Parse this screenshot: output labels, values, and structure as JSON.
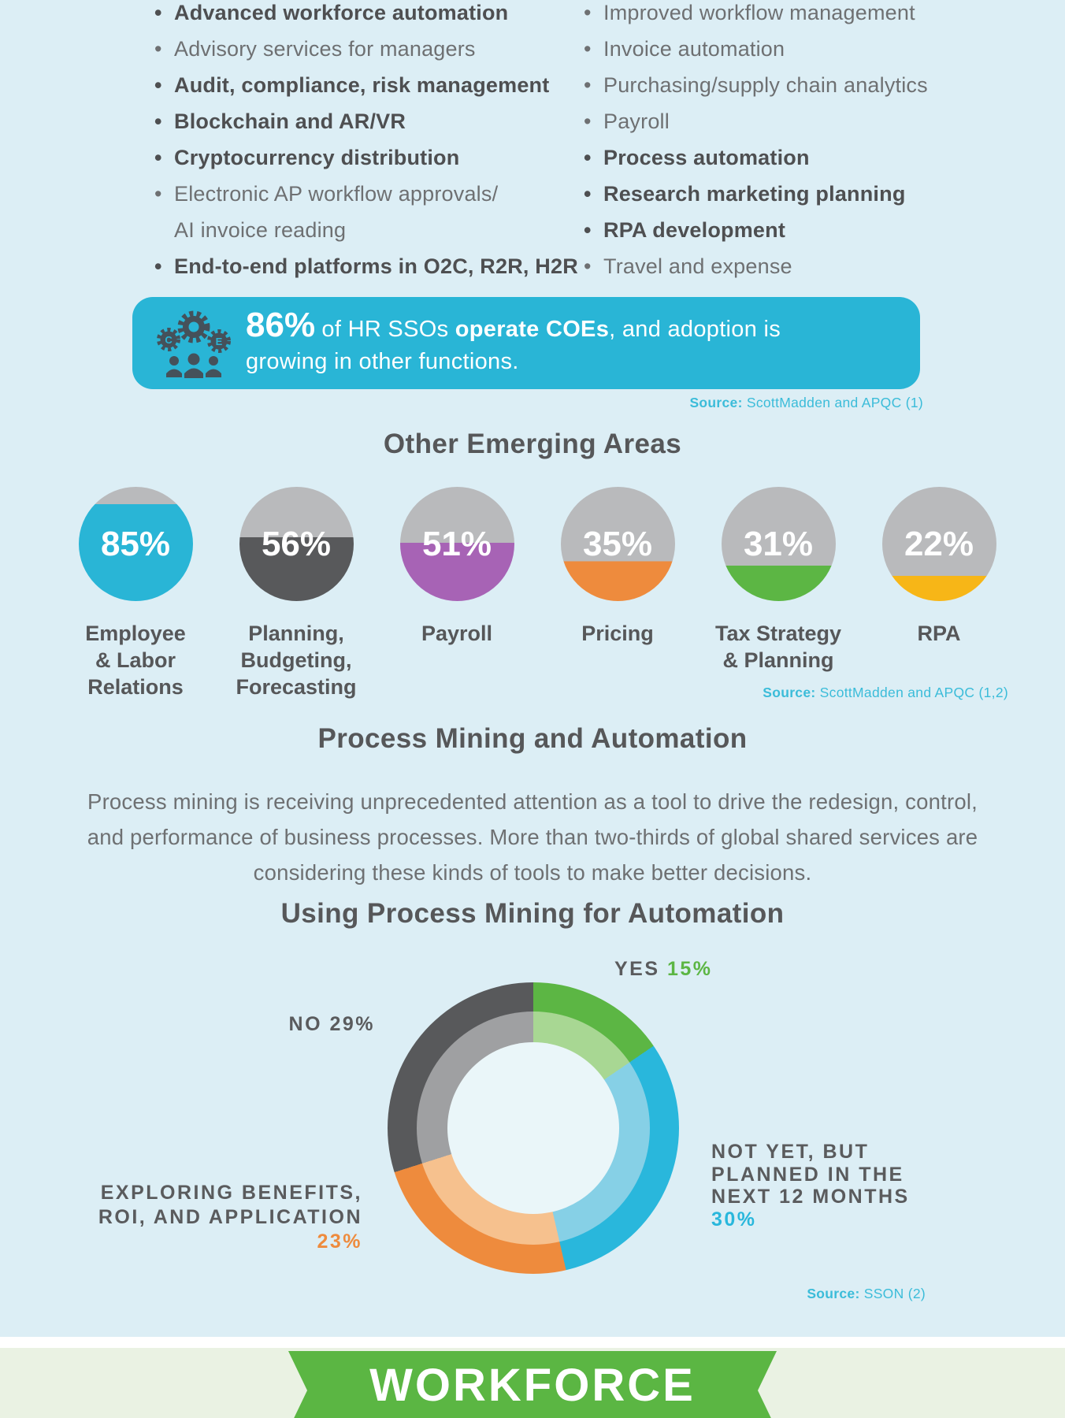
{
  "colors": {
    "page_bg": "#dceef5",
    "teal": "#29b5d6",
    "teal_bright": "#29b7dc",
    "source_teal": "#3bbcd9",
    "dark_gray": "#58595b",
    "text_gray": "#6e7072",
    "bold_text_gray": "#4e4f51",
    "purple": "#a763b5",
    "orange": "#ee8b3d",
    "green": "#5cb644",
    "yellow": "#f7b617",
    "circle_track_gray": "#b9babc",
    "banner_green": "#5bb643",
    "footer_bg": "#eaf2e3",
    "donut_hole": "#eaf6f9"
  },
  "bullets": {
    "left": [
      {
        "text": "Advanced workforce automation",
        "bold": true
      },
      {
        "text": "Advisory services for managers",
        "bold": false
      },
      {
        "text": "Audit, compliance, risk management",
        "bold": true
      },
      {
        "text": "Blockchain and AR/VR",
        "bold": true
      },
      {
        "text": "Cryptocurrency distribution",
        "bold": true
      },
      {
        "lines": [
          "Electronic AP workflow approvals/",
          "AI invoice reading"
        ],
        "bold": false
      },
      {
        "text": "End-to-end platforms in O2C, R2R, H2R",
        "bold": true
      }
    ],
    "right": [
      {
        "text": "Improved workflow management",
        "bold": false
      },
      {
        "text": "Invoice automation",
        "bold": false
      },
      {
        "text": "Purchasing/supply chain analytics",
        "bold": false
      },
      {
        "text": "Payroll",
        "bold": false
      },
      {
        "text": "Process automation",
        "bold": true
      },
      {
        "text": "Research marketing planning",
        "bold": true
      },
      {
        "text": "RPA development",
        "bold": true
      },
      {
        "text": "Travel and expense",
        "bold": false
      }
    ]
  },
  "callout": {
    "icon": "coe-gears-people-icon",
    "stat": "86%",
    "text_after_stat": " of HR SSOs ",
    "bold_phrase": "operate COEs",
    "text_rest": ", and adoption is growing in other functions."
  },
  "sources": {
    "label": "Source:",
    "s1": " ScottMadden and APQC (1)",
    "s2": " ScottMadden and APQC (1,2)",
    "s3": " SSON (2)"
  },
  "emerging": {
    "title": "Other Emerging Areas",
    "items": [
      {
        "pct_label": "85%",
        "value": 85,
        "color": "#29b5d6",
        "label_lines": [
          "Employee",
          "& Labor",
          "Relations"
        ]
      },
      {
        "pct_label": "56%",
        "value": 56,
        "color": "#58595b",
        "label_lines": [
          "Planning,",
          "Budgeting,",
          "Forecasting"
        ]
      },
      {
        "pct_label": "51%",
        "value": 51,
        "color": "#a763b5",
        "label_lines": [
          "Payroll"
        ]
      },
      {
        "pct_label": "35%",
        "value": 35,
        "color": "#ee8b3d",
        "label_lines": [
          "Pricing"
        ]
      },
      {
        "pct_label": "31%",
        "value": 31,
        "color": "#5cb644",
        "label_lines": [
          "Tax Strategy",
          "& Planning"
        ]
      },
      {
        "pct_label": "22%",
        "value": 22,
        "color": "#f7b617",
        "label_lines": [
          "RPA"
        ]
      }
    ]
  },
  "process_mining": {
    "title": "Process Mining and Automation",
    "body": "Process mining is receiving unprecedented attention as a tool to drive the redesign, control, and performance of business processes. More than two-thirds of global shared services are considering these kinds of tools to make better decisions."
  },
  "donut": {
    "title": "Using Process Mining for Automation",
    "segments": [
      {
        "name": "YES",
        "value": 15,
        "color": "#5cb644",
        "light": "#a8d793"
      },
      {
        "name": "NOT YET, BUT PLANNED IN THE NEXT 12 MONTHS",
        "value": 30,
        "color": "#29b7dc",
        "light": "#86d0e6"
      },
      {
        "name": "EXPLORING BENEFITS, ROI, AND APPLICATION",
        "value": 23,
        "color": "#ee8b3d",
        "light": "#f6c18e"
      },
      {
        "name": "NO",
        "value": 29,
        "color": "#58595b",
        "light": "#9fa0a2"
      }
    ],
    "labels": {
      "yes": {
        "text": "YES ",
        "pct": "15%"
      },
      "no": {
        "text": "NO 29%"
      },
      "exploring": {
        "line1": "EXPLORING BENEFITS,",
        "line2": "ROI, AND APPLICATION",
        "pct": "23%"
      },
      "notyet": {
        "line1": "NOT YET, BUT",
        "line2": "PLANNED IN THE",
        "line3": "NEXT 12 MONTHS",
        "pct": "30%"
      }
    }
  },
  "banner": {
    "label": "WORKFORCE"
  },
  "chart_data": [
    {
      "type": "pie",
      "variant": "percent-fill-circles",
      "title": "Other Emerging Areas",
      "categories": [
        "Employee & Labor Relations",
        "Planning, Budgeting, Forecasting",
        "Payroll",
        "Pricing",
        "Tax Strategy & Planning",
        "RPA"
      ],
      "values": [
        85,
        56,
        51,
        35,
        31,
        22
      ],
      "unit": "%",
      "colors": [
        "#29b5d6",
        "#58595b",
        "#a763b5",
        "#ee8b3d",
        "#5cb644",
        "#f7b617"
      ],
      "source": "ScottMadden and APQC (1,2)"
    },
    {
      "type": "pie",
      "variant": "donut",
      "title": "Using Process Mining for Automation",
      "categories": [
        "YES",
        "NOT YET, BUT PLANNED IN THE NEXT 12 MONTHS",
        "EXPLORING BENEFITS, ROI, AND APPLICATION",
        "NO"
      ],
      "values": [
        15,
        30,
        23,
        29
      ],
      "unit": "%",
      "colors": [
        "#5cb644",
        "#29b7dc",
        "#ee8b3d",
        "#58595b"
      ],
      "start_angle_deg": 0,
      "direction": "clockwise",
      "source": "SSON (2)"
    }
  ]
}
